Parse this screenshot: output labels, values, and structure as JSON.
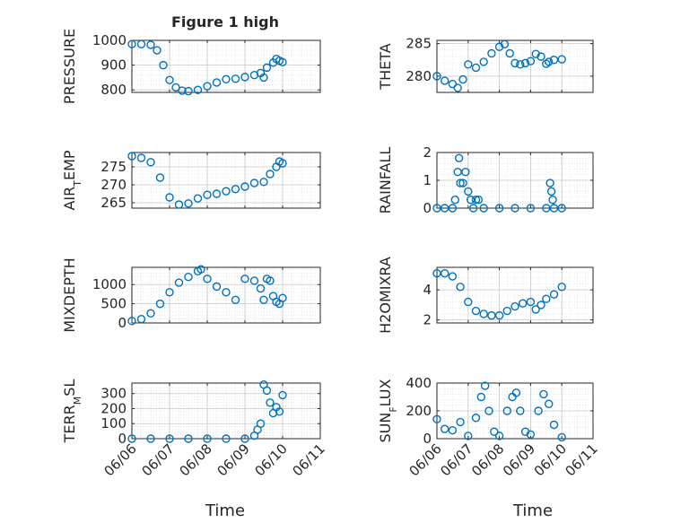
{
  "figure": {
    "title": "Figure 1 high",
    "xlabel": "Time",
    "date_ticks": [
      "06/06",
      "06/07",
      "06/08",
      "06/09",
      "06/10",
      "06/11"
    ]
  },
  "colors": {
    "marker": "#0072BD",
    "axis": "#262626",
    "grid": "#d9d9d9"
  },
  "chart_data": [
    {
      "type": "scatter",
      "ylabel": "PRESSURE",
      "x_range": [
        "06/06",
        "06/11"
      ],
      "ylim": [
        790,
        1000
      ],
      "yticks": [
        800,
        900,
        1000
      ],
      "grid": true,
      "points": [
        [
          "06/06 00:00",
          985
        ],
        [
          "06/06 06:00",
          985
        ],
        [
          "06/06 12:00",
          982
        ],
        [
          "06/06 16:00",
          960
        ],
        [
          "06/06 20:00",
          900
        ],
        [
          "06/07 00:00",
          840
        ],
        [
          "06/07 04:00",
          810
        ],
        [
          "06/07 08:00",
          797
        ],
        [
          "06/07 12:00",
          795
        ],
        [
          "06/07 18:00",
          800
        ],
        [
          "06/08 00:00",
          815
        ],
        [
          "06/08 06:00",
          830
        ],
        [
          "06/08 12:00",
          843
        ],
        [
          "06/08 18:00",
          845
        ],
        [
          "06/09 00:00",
          852
        ],
        [
          "06/09 06:00",
          860
        ],
        [
          "06/09 10:00",
          868
        ],
        [
          "06/09 12:00",
          850
        ],
        [
          "06/09 14:00",
          890
        ],
        [
          "06/09 18:00",
          910
        ],
        [
          "06/09 20:00",
          925
        ],
        [
          "06/09 22:00",
          918
        ],
        [
          "06/10 00:00",
          912
        ]
      ]
    },
    {
      "type": "scatter",
      "ylabel": "THETA",
      "x_range": [
        "06/06",
        "06/11"
      ],
      "ylim": [
        277.5,
        285.5
      ],
      "yticks": [
        280,
        285
      ],
      "grid": true,
      "points": [
        [
          "06/06 00:00",
          280.0
        ],
        [
          "06/06 06:00",
          279.3
        ],
        [
          "06/06 12:00",
          278.8
        ],
        [
          "06/06 16:00",
          278.2
        ],
        [
          "06/06 20:00",
          279.5
        ],
        [
          "06/07 00:00",
          281.8
        ],
        [
          "06/07 06:00",
          281.3
        ],
        [
          "06/07 12:00",
          282.2
        ],
        [
          "06/07 18:00",
          283.5
        ],
        [
          "06/08 00:00",
          284.5
        ],
        [
          "06/08 04:00",
          284.9
        ],
        [
          "06/08 08:00",
          283.5
        ],
        [
          "06/08 12:00",
          282.0
        ],
        [
          "06/08 16:00",
          281.8
        ],
        [
          "06/08 20:00",
          282.0
        ],
        [
          "06/09 00:00",
          282.3
        ],
        [
          "06/09 04:00",
          283.4
        ],
        [
          "06/09 08:00",
          283.0
        ],
        [
          "06/09 12:00",
          281.9
        ],
        [
          "06/09 14:00",
          282.2
        ],
        [
          "06/09 18:00",
          282.5
        ],
        [
          "06/10 00:00",
          282.6
        ]
      ]
    },
    {
      "type": "scatter",
      "ylabel": "AIR_TEMP",
      "x_range": [
        "06/06",
        "06/11"
      ],
      "ylim": [
        263.5,
        279
      ],
      "yticks": [
        265,
        270,
        275
      ],
      "grid": true,
      "points": [
        [
          "06/06 00:00",
          278.0
        ],
        [
          "06/06 06:00",
          277.5
        ],
        [
          "06/06 12:00",
          276.3
        ],
        [
          "06/06 18:00",
          272.0
        ],
        [
          "06/07 00:00",
          266.5
        ],
        [
          "06/07 06:00",
          264.5
        ],
        [
          "06/07 12:00",
          264.8
        ],
        [
          "06/07 18:00",
          266.2
        ],
        [
          "06/08 00:00",
          267.2
        ],
        [
          "06/08 06:00",
          267.5
        ],
        [
          "06/08 12:00",
          268.2
        ],
        [
          "06/08 18:00",
          268.8
        ],
        [
          "06/09 00:00",
          269.5
        ],
        [
          "06/09 06:00",
          270.5
        ],
        [
          "06/09 12:00",
          270.8
        ],
        [
          "06/09 16:00",
          273.0
        ],
        [
          "06/09 20:00",
          275.0
        ],
        [
          "06/09 22:00",
          276.5
        ],
        [
          "06/10 00:00",
          276.0
        ]
      ]
    },
    {
      "type": "scatter",
      "ylabel": "RAINFALL",
      "x_range": [
        "06/06",
        "06/11"
      ],
      "ylim": [
        0,
        2
      ],
      "yticks": [
        0,
        1,
        2
      ],
      "grid": true,
      "points": [
        [
          "06/06 00:00",
          0
        ],
        [
          "06/06 06:00",
          0
        ],
        [
          "06/06 12:00",
          0
        ],
        [
          "06/06 14:00",
          0.3
        ],
        [
          "06/06 16:00",
          1.3
        ],
        [
          "06/06 17:00",
          1.8
        ],
        [
          "06/06 18:00",
          0.9
        ],
        [
          "06/06 20:00",
          0.9
        ],
        [
          "06/06 22:00",
          1.3
        ],
        [
          "06/07 00:00",
          0.6
        ],
        [
          "06/07 02:00",
          0.3
        ],
        [
          "06/07 04:00",
          0
        ],
        [
          "06/07 06:00",
          0.3
        ],
        [
          "06/07 08:00",
          0.3
        ],
        [
          "06/07 12:00",
          0
        ],
        [
          "06/08 00:00",
          0
        ],
        [
          "06/08 12:00",
          0
        ],
        [
          "06/09 00:00",
          0
        ],
        [
          "06/09 12:00",
          0
        ],
        [
          "06/09 15:00",
          0.9
        ],
        [
          "06/09 16:00",
          0.6
        ],
        [
          "06/09 17:00",
          0.3
        ],
        [
          "06/09 18:00",
          0
        ],
        [
          "06/10 00:00",
          0
        ]
      ]
    },
    {
      "type": "scatter",
      "ylabel": "MIXDEPTH",
      "x_range": [
        "06/06",
        "06/11"
      ],
      "ylim": [
        0,
        1450
      ],
      "yticks": [
        0,
        500,
        1000
      ],
      "grid": true,
      "points": [
        [
          "06/06 00:00",
          50
        ],
        [
          "06/06 06:00",
          100
        ],
        [
          "06/06 12:00",
          250
        ],
        [
          "06/06 18:00",
          500
        ],
        [
          "06/07 00:00",
          800
        ],
        [
          "06/07 06:00",
          1050
        ],
        [
          "06/07 12:00",
          1200
        ],
        [
          "06/07 18:00",
          1350
        ],
        [
          "06/07 20:00",
          1400
        ],
        [
          "06/08 00:00",
          1150
        ],
        [
          "06/08 06:00",
          950
        ],
        [
          "06/08 12:00",
          800
        ],
        [
          "06/08 18:00",
          600
        ],
        [
          "06/09 00:00",
          1150
        ],
        [
          "06/09 06:00",
          1100
        ],
        [
          "06/09 10:00",
          900
        ],
        [
          "06/09 12:00",
          600
        ],
        [
          "06/09 14:00",
          1150
        ],
        [
          "06/09 16:00",
          1100
        ],
        [
          "06/09 18:00",
          700
        ],
        [
          "06/09 20:00",
          550
        ],
        [
          "06/09 22:00",
          500
        ],
        [
          "06/10 00:00",
          650
        ]
      ]
    },
    {
      "type": "scatter",
      "ylabel": "H2OMIXRA",
      "x_range": [
        "06/06",
        "06/11"
      ],
      "ylim": [
        1.8,
        5.5
      ],
      "yticks": [
        2,
        4
      ],
      "grid": true,
      "points": [
        [
          "06/06 00:00",
          5.1
        ],
        [
          "06/06 06:00",
          5.1
        ],
        [
          "06/06 12:00",
          4.9
        ],
        [
          "06/06 18:00",
          4.2
        ],
        [
          "06/07 00:00",
          3.2
        ],
        [
          "06/07 06:00",
          2.6
        ],
        [
          "06/07 12:00",
          2.4
        ],
        [
          "06/07 18:00",
          2.3
        ],
        [
          "06/08 00:00",
          2.3
        ],
        [
          "06/08 06:00",
          2.6
        ],
        [
          "06/08 12:00",
          2.9
        ],
        [
          "06/08 18:00",
          3.1
        ],
        [
          "06/09 00:00",
          3.2
        ],
        [
          "06/09 04:00",
          2.7
        ],
        [
          "06/09 08:00",
          3.0
        ],
        [
          "06/09 12:00",
          3.4
        ],
        [
          "06/09 18:00",
          3.7
        ],
        [
          "06/10 00:00",
          4.2
        ]
      ]
    },
    {
      "type": "scatter",
      "ylabel": "TERR_MSL",
      "x_range": [
        "06/06",
        "06/11"
      ],
      "ylim": [
        0,
        370
      ],
      "yticks": [
        0,
        100,
        200,
        300
      ],
      "grid": true,
      "points": [
        [
          "06/06 00:00",
          0
        ],
        [
          "06/06 12:00",
          0
        ],
        [
          "06/07 00:00",
          0
        ],
        [
          "06/07 12:00",
          0
        ],
        [
          "06/08 00:00",
          0
        ],
        [
          "06/08 12:00",
          0
        ],
        [
          "06/09 00:00",
          0
        ],
        [
          "06/09 06:00",
          20
        ],
        [
          "06/09 08:00",
          60
        ],
        [
          "06/09 10:00",
          100
        ],
        [
          "06/09 12:00",
          360
        ],
        [
          "06/09 14:00",
          320
        ],
        [
          "06/09 16:00",
          240
        ],
        [
          "06/09 18:00",
          170
        ],
        [
          "06/09 20:00",
          210
        ],
        [
          "06/09 22:00",
          180
        ],
        [
          "06/10 00:00",
          290
        ]
      ]
    },
    {
      "type": "scatter",
      "ylabel": "SUN_FLUX",
      "x_range": [
        "06/06",
        "06/11"
      ],
      "ylim": [
        0,
        400
      ],
      "yticks": [
        0,
        200,
        400
      ],
      "grid": true,
      "points": [
        [
          "06/06 00:00",
          140
        ],
        [
          "06/06 06:00",
          70
        ],
        [
          "06/06 12:00",
          60
        ],
        [
          "06/06 18:00",
          120
        ],
        [
          "06/07 00:00",
          20
        ],
        [
          "06/07 06:00",
          150
        ],
        [
          "06/07 10:00",
          300
        ],
        [
          "06/07 13:00",
          380
        ],
        [
          "06/07 16:00",
          200
        ],
        [
          "06/07 20:00",
          50
        ],
        [
          "06/08 00:00",
          20
        ],
        [
          "06/08 06:00",
          200
        ],
        [
          "06/08 10:00",
          300
        ],
        [
          "06/08 13:00",
          330
        ],
        [
          "06/08 16:00",
          200
        ],
        [
          "06/08 20:00",
          50
        ],
        [
          "06/09 00:00",
          30
        ],
        [
          "06/09 06:00",
          200
        ],
        [
          "06/09 10:00",
          320
        ],
        [
          "06/09 14:00",
          250
        ],
        [
          "06/09 18:00",
          100
        ],
        [
          "06/10 00:00",
          10
        ]
      ]
    }
  ]
}
